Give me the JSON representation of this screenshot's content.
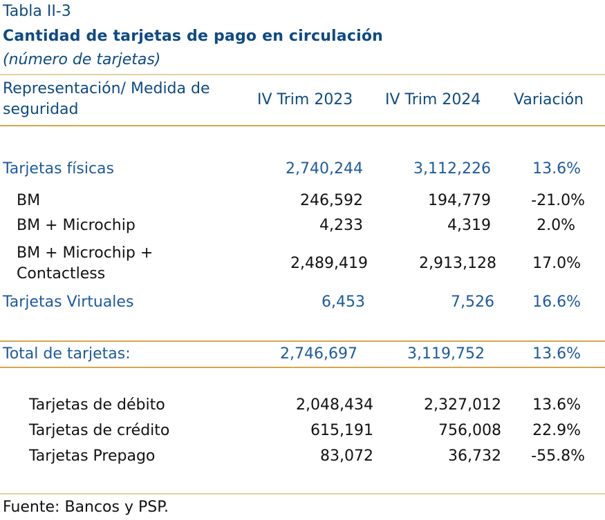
{
  "header": {
    "table_number": "Tabla II-3",
    "title": "Cantidad de tarjetas de pago en circulación",
    "subtitle": "(número de tarjetas)"
  },
  "columns": {
    "label_line1": "Representación/ Medida de",
    "label_line2": "seguridad",
    "col1": "IV Trim 2023",
    "col2": "IV Trim 2024",
    "col3": "Variación"
  },
  "rows": [
    {
      "label": "Tarjetas físicas",
      "v2023": "2,740,244",
      "v2024": "3,112,226",
      "var": "13.6%"
    },
    {
      "label": "BM",
      "v2023": "246,592",
      "v2024": "194,779",
      "var": "-21.0%"
    },
    {
      "label": "BM + Microchip",
      "v2023": "4,233",
      "v2024": "4,319",
      "var": "2.0%"
    },
    {
      "label_line1": "BM + Microchip +",
      "label_line2": "Contactless",
      "v2023": "2,489,419",
      "v2024": "2,913,128",
      "var": "17.0%"
    },
    {
      "label": "Tarjetas Virtuales",
      "v2023": "6,453",
      "v2024": "7,526",
      "var": "16.6%"
    },
    {
      "label": "Total de tarjetas:",
      "v2023": "2,746,697",
      "v2024": "3,119,752",
      "var": "13.6%"
    },
    {
      "label": "Tarjetas de débito",
      "v2023": "2,048,434",
      "v2024": "2,327,012",
      "var": "13.6%"
    },
    {
      "label": "Tarjetas de crédito",
      "v2023": "615,191",
      "v2024": "756,008",
      "var": "22.9%"
    },
    {
      "label": "Tarjetas Prepago",
      "v2023": "83,072",
      "v2024": "36,732",
      "var": "-55.8%"
    }
  ],
  "footer": {
    "source": "Fuente: Bancos y PSP."
  }
}
